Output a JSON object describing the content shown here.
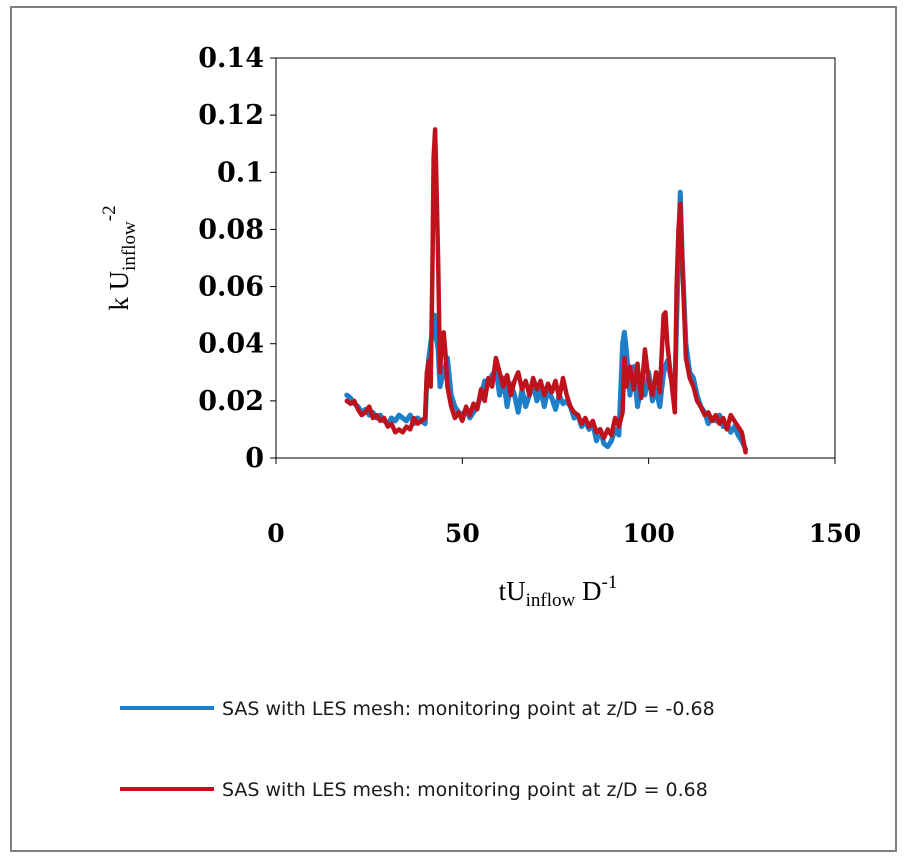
{
  "chart_data": {
    "type": "line",
    "xlabel": {
      "base": "tU",
      "sub": "inflow",
      "rest": " D",
      "sup": "-1"
    },
    "ylabel": {
      "base": "k U",
      "sub": "inflow",
      "sup": "-2"
    },
    "xlim": [
      0,
      150
    ],
    "ylim": [
      0,
      0.14
    ],
    "x_ticks": [
      "0",
      "50",
      "100",
      "150"
    ],
    "y_ticks": [
      "0",
      "0.02",
      "0.04",
      "0.06",
      "0.08",
      "0.1",
      "0.12",
      "0.14"
    ],
    "grid": false,
    "legend_position": "bottom",
    "series": [
      {
        "name": "SAS with LES mesh: monitoring point at z/D = -0.68",
        "color": "#1f7ec8",
        "points": [
          [
            19,
            0.022
          ],
          [
            20,
            0.021
          ],
          [
            21,
            0.019
          ],
          [
            22,
            0.018
          ],
          [
            23,
            0.016
          ],
          [
            24,
            0.017
          ],
          [
            25,
            0.015
          ],
          [
            26,
            0.016
          ],
          [
            27,
            0.014
          ],
          [
            28,
            0.015
          ],
          [
            29,
            0.013
          ],
          [
            30,
            0.012
          ],
          [
            31,
            0.014
          ],
          [
            32,
            0.013
          ],
          [
            33,
            0.015
          ],
          [
            34,
            0.014
          ],
          [
            35,
            0.013
          ],
          [
            36,
            0.015
          ],
          [
            37,
            0.012
          ],
          [
            38,
            0.014
          ],
          [
            39,
            0.013
          ],
          [
            40,
            0.012
          ],
          [
            40.5,
            0.028
          ],
          [
            41,
            0.035
          ],
          [
            42,
            0.045
          ],
          [
            42.5,
            0.05
          ],
          [
            43,
            0.042
          ],
          [
            43.5,
            0.038
          ],
          [
            44,
            0.025
          ],
          [
            45,
            0.03
          ],
          [
            46,
            0.035
          ],
          [
            47,
            0.022
          ],
          [
            48,
            0.018
          ],
          [
            49,
            0.016
          ],
          [
            50,
            0.015
          ],
          [
            51,
            0.017
          ],
          [
            52,
            0.014
          ],
          [
            53,
            0.016
          ],
          [
            54,
            0.018
          ],
          [
            55,
            0.022
          ],
          [
            56,
            0.027
          ],
          [
            57,
            0.026
          ],
          [
            58,
            0.029
          ],
          [
            59,
            0.031
          ],
          [
            60,
            0.022
          ],
          [
            61,
            0.028
          ],
          [
            62,
            0.018
          ],
          [
            63,
            0.026
          ],
          [
            64,
            0.022
          ],
          [
            65,
            0.016
          ],
          [
            66,
            0.024
          ],
          [
            67,
            0.018
          ],
          [
            68,
            0.022
          ],
          [
            69,
            0.026
          ],
          [
            70,
            0.02
          ],
          [
            71,
            0.024
          ],
          [
            72,
            0.018
          ],
          [
            73,
            0.024
          ],
          [
            74,
            0.021
          ],
          [
            75,
            0.017
          ],
          [
            76,
            0.022
          ],
          [
            77,
            0.019
          ],
          [
            78,
            0.02
          ],
          [
            79,
            0.018
          ],
          [
            80,
            0.014
          ],
          [
            81,
            0.015
          ],
          [
            82,
            0.011
          ],
          [
            83,
            0.013
          ],
          [
            84,
            0.01
          ],
          [
            85,
            0.012
          ],
          [
            86,
            0.006
          ],
          [
            87,
            0.01
          ],
          [
            88,
            0.005
          ],
          [
            89,
            0.004
          ],
          [
            90,
            0.006
          ],
          [
            91,
            0.01
          ],
          [
            92,
            0.008
          ],
          [
            93,
            0.04
          ],
          [
            93.5,
            0.044
          ],
          [
            94,
            0.038
          ],
          [
            95,
            0.022
          ],
          [
            96,
            0.032
          ],
          [
            97,
            0.018
          ],
          [
            98,
            0.025
          ],
          [
            99,
            0.022
          ],
          [
            100,
            0.03
          ],
          [
            101,
            0.02
          ],
          [
            102,
            0.024
          ],
          [
            103,
            0.018
          ],
          [
            104,
            0.03
          ],
          [
            105,
            0.034
          ],
          [
            106,
            0.028
          ],
          [
            107,
            0.024
          ],
          [
            108,
            0.072
          ],
          [
            108.5,
            0.093
          ],
          [
            109,
            0.07
          ],
          [
            110,
            0.04
          ],
          [
            111,
            0.03
          ],
          [
            112,
            0.028
          ],
          [
            113,
            0.022
          ],
          [
            114,
            0.018
          ],
          [
            115,
            0.016
          ],
          [
            116,
            0.012
          ],
          [
            117,
            0.014
          ],
          [
            118,
            0.013
          ],
          [
            119,
            0.015
          ],
          [
            120,
            0.011
          ],
          [
            121,
            0.012
          ],
          [
            122,
            0.009
          ],
          [
            123,
            0.011
          ],
          [
            124,
            0.008
          ],
          [
            125,
            0.006
          ],
          [
            126,
            0.003
          ]
        ]
      },
      {
        "name": "SAS with LES mesh: monitoring point at z/D = 0.68",
        "color": "#c0121c",
        "points": [
          [
            19,
            0.02
          ],
          [
            20,
            0.019
          ],
          [
            21,
            0.02
          ],
          [
            22,
            0.017
          ],
          [
            23,
            0.015
          ],
          [
            24,
            0.016
          ],
          [
            25,
            0.018
          ],
          [
            26,
            0.014
          ],
          [
            27,
            0.015
          ],
          [
            28,
            0.013
          ],
          [
            29,
            0.014
          ],
          [
            30,
            0.011
          ],
          [
            31,
            0.012
          ],
          [
            32,
            0.009
          ],
          [
            33,
            0.01
          ],
          [
            34,
            0.009
          ],
          [
            35,
            0.011
          ],
          [
            36,
            0.01
          ],
          [
            37,
            0.014
          ],
          [
            38,
            0.012
          ],
          [
            39,
            0.013
          ],
          [
            40,
            0.014
          ],
          [
            40.5,
            0.03
          ],
          [
            41,
            0.034
          ],
          [
            41.5,
            0.025
          ],
          [
            42,
            0.068
          ],
          [
            42.3,
            0.105
          ],
          [
            42.7,
            0.115
          ],
          [
            43,
            0.1
          ],
          [
            43.5,
            0.07
          ],
          [
            44,
            0.03
          ],
          [
            44.5,
            0.04
          ],
          [
            45,
            0.044
          ],
          [
            45.5,
            0.036
          ],
          [
            46,
            0.025
          ],
          [
            47,
            0.018
          ],
          [
            48,
            0.014
          ],
          [
            49,
            0.016
          ],
          [
            50,
            0.013
          ],
          [
            51,
            0.018
          ],
          [
            52,
            0.015
          ],
          [
            53,
            0.019
          ],
          [
            54,
            0.017
          ],
          [
            55,
            0.024
          ],
          [
            56,
            0.02
          ],
          [
            57,
            0.028
          ],
          [
            58,
            0.025
          ],
          [
            59,
            0.035
          ],
          [
            60,
            0.03
          ],
          [
            61,
            0.025
          ],
          [
            62,
            0.029
          ],
          [
            63,
            0.022
          ],
          [
            64,
            0.027
          ],
          [
            65,
            0.03
          ],
          [
            66,
            0.024
          ],
          [
            67,
            0.027
          ],
          [
            68,
            0.022
          ],
          [
            69,
            0.028
          ],
          [
            70,
            0.024
          ],
          [
            71,
            0.027
          ],
          [
            72,
            0.022
          ],
          [
            73,
            0.026
          ],
          [
            74,
            0.023
          ],
          [
            75,
            0.027
          ],
          [
            76,
            0.021
          ],
          [
            77,
            0.028
          ],
          [
            78,
            0.022
          ],
          [
            79,
            0.018
          ],
          [
            80,
            0.016
          ],
          [
            81,
            0.015
          ],
          [
            82,
            0.012
          ],
          [
            83,
            0.014
          ],
          [
            84,
            0.011
          ],
          [
            85,
            0.013
          ],
          [
            86,
            0.009
          ],
          [
            87,
            0.01
          ],
          [
            88,
            0.007
          ],
          [
            89,
            0.01
          ],
          [
            90,
            0.008
          ],
          [
            91,
            0.014
          ],
          [
            92,
            0.011
          ],
          [
            93,
            0.016
          ],
          [
            93.5,
            0.035
          ],
          [
            94,
            0.025
          ],
          [
            95,
            0.032
          ],
          [
            96,
            0.024
          ],
          [
            97,
            0.033
          ],
          [
            98,
            0.021
          ],
          [
            99,
            0.038
          ],
          [
            100,
            0.027
          ],
          [
            101,
            0.022
          ],
          [
            102,
            0.03
          ],
          [
            103,
            0.023
          ],
          [
            104,
            0.05
          ],
          [
            104.5,
            0.051
          ],
          [
            105,
            0.04
          ],
          [
            106,
            0.028
          ],
          [
            107,
            0.016
          ],
          [
            107.5,
            0.06
          ],
          [
            108,
            0.08
          ],
          [
            108.5,
            0.089
          ],
          [
            109,
            0.07
          ],
          [
            110,
            0.035
          ],
          [
            111,
            0.028
          ],
          [
            112,
            0.025
          ],
          [
            113,
            0.02
          ],
          [
            114,
            0.018
          ],
          [
            115,
            0.015
          ],
          [
            116,
            0.016
          ],
          [
            117,
            0.013
          ],
          [
            118,
            0.015
          ],
          [
            119,
            0.012
          ],
          [
            120,
            0.014
          ],
          [
            121,
            0.01
          ],
          [
            122,
            0.015
          ],
          [
            123,
            0.013
          ],
          [
            124,
            0.011
          ],
          [
            125,
            0.009
          ],
          [
            126,
            0.002
          ]
        ]
      }
    ]
  }
}
